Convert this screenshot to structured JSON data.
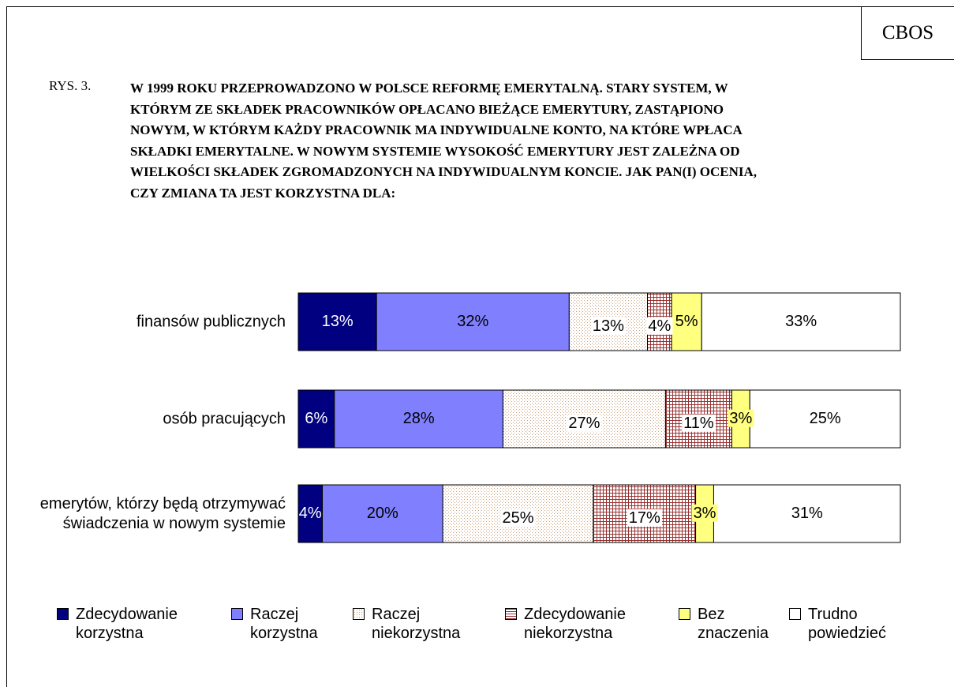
{
  "corner_label": "CBOS",
  "chart_data": {
    "type": "stacked_bar_horizontal",
    "figure_label": "RYS. 3.",
    "title": "W 1999 ROKU PRZEPROWADZONO W POLSCE REFORMĘ EMERYTALNĄ.  STARY SYSTEM, W KTÓRYM ZE SKŁADEK PRACOWNIKÓW OPŁACANO BIEŻĄCE EMERYTURY, ZASTĄPIONO NOWYM, W KTÓRYM KAŻDY PRACOWNIK MA INDYWIDUALNE KONTO, NA KTÓRE WPŁACA SKŁADKI EMERYTALNE.  W NOWYM SYSTEMIE WYSOKOŚĆ EMERYTURY JEST ZALEŻNA OD WIELKOŚCI SKŁADEK ZGROMADZONYCH NA INDYWIDUALNYM KONCIE. JAK PAN(I) OCENIA, CZY ZMIANA TA JEST KORZYSTNA DLA:",
    "categories": [
      "finansów publicznych",
      "osób pracujących",
      "emerytów, którzy będą otrzymywać świadczenia w nowym systemie"
    ],
    "series": [
      {
        "name": "Zdecydowanie korzystna",
        "color": "#000080",
        "values": [
          13,
          6,
          4
        ],
        "value_labels": [
          "13%",
          "6%",
          "4%"
        ]
      },
      {
        "name": "Raczej korzystna",
        "color": "#8080ff",
        "values": [
          32,
          28,
          20
        ],
        "value_labels": [
          "32%",
          "28%",
          "20%"
        ]
      },
      {
        "name": "Raczej niekorzystna",
        "color": "#c8a078",
        "pattern": "dots",
        "values": [
          13,
          27,
          25
        ],
        "value_labels": [
          "13%",
          "27%",
          "25%"
        ]
      },
      {
        "name": "Zdecydowanie niekorzystna",
        "color": "#993333",
        "pattern": "grid",
        "values": [
          4,
          11,
          17
        ],
        "value_labels": [
          "4%",
          "11%",
          "17%"
        ]
      },
      {
        "name": "Bez znaczenia",
        "color": "#ffff80",
        "values": [
          5,
          3,
          3
        ],
        "value_labels": [
          "5%",
          "3%",
          "3%"
        ]
      },
      {
        "name": "Trudno powiedzieć",
        "color": "#ffffff",
        "values": [
          33,
          25,
          31
        ],
        "value_labels": [
          "33%",
          "25%",
          "31%"
        ]
      }
    ],
    "legend": "bottom"
  }
}
